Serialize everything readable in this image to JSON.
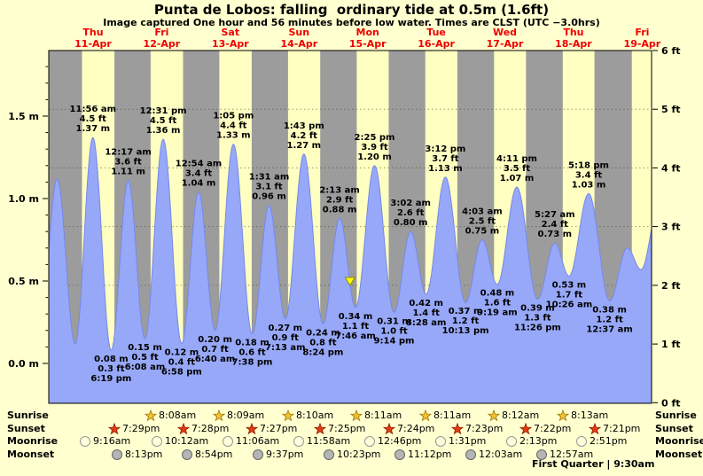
{
  "chart_data": {
    "type": "area",
    "title": "Punta de Lobos: falling  ordinary tide at 0.5m (1.6ft)",
    "subtitle": "Image captured One hour and 56 minutes before low water. Times are CLST (UTC −3.0hrs)",
    "series": "tide height",
    "x_unit": "hours from 00:00 Thu 11-Apr",
    "y_range_m": [
      -0.24,
      1.9
    ],
    "x_axis_days": [
      {
        "name": "Thu",
        "date": "11-Apr",
        "noon_t": 12
      },
      {
        "name": "Fri",
        "date": "12-Apr",
        "noon_t": 36
      },
      {
        "name": "Sat",
        "date": "13-Apr",
        "noon_t": 60
      },
      {
        "name": "Sun",
        "date": "14-Apr",
        "noon_t": 84
      },
      {
        "name": "Mon",
        "date": "15-Apr",
        "noon_t": 108
      },
      {
        "name": "Tue",
        "date": "16-Apr",
        "noon_t": 132
      },
      {
        "name": "Wed",
        "date": "17-Apr",
        "noon_t": 156
      },
      {
        "name": "Thu",
        "date": "18-Apr",
        "noon_t": 180
      },
      {
        "name": "Fri",
        "date": "19-Apr",
        "noon_t": 204
      }
    ],
    "y_axis_m": {
      "unit": "m",
      "ticks": [
        {
          "label": "0.0 m",
          "value": 0.0
        },
        {
          "label": "0.5 m",
          "value": 0.5
        },
        {
          "label": "1.0 m",
          "value": 1.0
        },
        {
          "label": "1.5 m",
          "value": 1.5
        }
      ]
    },
    "y_axis_ft": {
      "unit": "ft",
      "ticks": [
        {
          "label": "0 ft",
          "value": 0
        },
        {
          "label": "1 ft",
          "value": 1
        },
        {
          "label": "2 ft",
          "value": 2
        },
        {
          "label": "3 ft",
          "value": 3
        },
        {
          "label": "4 ft",
          "value": 4
        },
        {
          "label": "5 ft",
          "value": 5
        },
        {
          "label": "6 ft",
          "value": 6
        }
      ]
    },
    "extremes": [
      {
        "kind": "high",
        "t": 11.93,
        "h": 1.37,
        "time": "11:56 am",
        "ft": "4.5 ft",
        "m": "1.37 m"
      },
      {
        "kind": "low",
        "t": 18.32,
        "h": 0.08,
        "time": "6:19 pm",
        "ft": "0.3 ft",
        "m": "0.08 m"
      },
      {
        "kind": "high",
        "t": 24.28,
        "h": 1.11,
        "time": "12:17 am",
        "ft": "3.6 ft",
        "m": "1.11 m"
      },
      {
        "kind": "low",
        "t": 30.13,
        "h": 0.15,
        "time": "6:08 am",
        "ft": "0.5 ft",
        "m": "0.15 m"
      },
      {
        "kind": "high",
        "t": 36.52,
        "h": 1.36,
        "time": "12:31 pm",
        "ft": "4.5 ft",
        "m": "1.36 m"
      },
      {
        "kind": "low",
        "t": 42.97,
        "h": 0.12,
        "time": "6:58 pm",
        "ft": "0.4 ft",
        "m": "0.12 m"
      },
      {
        "kind": "high",
        "t": 48.9,
        "h": 1.04,
        "time": "12:54 am",
        "ft": "3.4 ft",
        "m": "1.04 m"
      },
      {
        "kind": "low",
        "t": 54.67,
        "h": 0.2,
        "time": "6:40 am",
        "ft": "0.7 ft",
        "m": "0.20 m"
      },
      {
        "kind": "high",
        "t": 61.08,
        "h": 1.33,
        "time": "1:05 pm",
        "ft": "4.4 ft",
        "m": "1.33 m"
      },
      {
        "kind": "low",
        "t": 67.63,
        "h": 0.18,
        "time": "7:38 pm",
        "ft": "0.6 ft",
        "m": "0.18 m"
      },
      {
        "kind": "high",
        "t": 73.52,
        "h": 0.96,
        "time": "1:31 am",
        "ft": "3.1 ft",
        "m": "0.96 m"
      },
      {
        "kind": "low",
        "t": 79.22,
        "h": 0.27,
        "time": "7:13 am",
        "ft": "0.9 ft",
        "m": "0.27 m"
      },
      {
        "kind": "high",
        "t": 85.72,
        "h": 1.27,
        "time": "1:43 pm",
        "ft": "4.2 ft",
        "m": "1.27 m"
      },
      {
        "kind": "low",
        "t": 92.4,
        "h": 0.24,
        "time": "8:24 pm",
        "ft": "0.8 ft",
        "m": "0.24 m"
      },
      {
        "kind": "high",
        "t": 98.22,
        "h": 0.88,
        "time": "2:13 am",
        "ft": "2.9 ft",
        "m": "0.88 m"
      },
      {
        "kind": "low",
        "t": 103.77,
        "h": 0.34,
        "time": "7:46 am",
        "ft": "1.1 ft",
        "m": "0.34 m"
      },
      {
        "kind": "high",
        "t": 110.42,
        "h": 1.2,
        "time": "2:25 pm",
        "ft": "3.9 ft",
        "m": "1.20 m"
      },
      {
        "kind": "low",
        "t": 117.23,
        "h": 0.31,
        "time": "9:14 pm",
        "ft": "1.0 ft",
        "m": "0.31 m"
      },
      {
        "kind": "high",
        "t": 123.03,
        "h": 0.8,
        "time": "3:02 am",
        "ft": "2.6 ft",
        "m": "0.80 m"
      },
      {
        "kind": "low",
        "t": 128.47,
        "h": 0.42,
        "time": "8:28 am",
        "ft": "1.4 ft",
        "m": "0.42 m"
      },
      {
        "kind": "high",
        "t": 135.2,
        "h": 1.13,
        "time": "3:12 pm",
        "ft": "3.7 ft",
        "m": "1.13 m"
      },
      {
        "kind": "low",
        "t": 142.22,
        "h": 0.37,
        "time": "10:13 pm",
        "ft": "1.2 ft",
        "m": "0.37 m"
      },
      {
        "kind": "high",
        "t": 148.05,
        "h": 0.75,
        "time": "4:03 am",
        "ft": "2.5 ft",
        "m": "0.75 m"
      },
      {
        "kind": "low",
        "t": 153.32,
        "h": 0.48,
        "time": "9:19 am",
        "ft": "1.6 ft",
        "m": "0.48 m"
      },
      {
        "kind": "high",
        "t": 160.18,
        "h": 1.07,
        "time": "4:11 pm",
        "ft": "3.5 ft",
        "m": "1.07 m"
      },
      {
        "kind": "low",
        "t": 167.43,
        "h": 0.39,
        "time": "11:26 pm",
        "ft": "1.3 ft",
        "m": "0.39 m"
      },
      {
        "kind": "high",
        "t": 173.45,
        "h": 0.73,
        "time": "5:27 am",
        "ft": "2.4 ft",
        "m": "0.73 m"
      },
      {
        "kind": "low",
        "t": 178.43,
        "h": 0.53,
        "time": "10:26 am",
        "ft": "1.7 ft",
        "m": "0.53 m"
      },
      {
        "kind": "high",
        "t": 185.3,
        "h": 1.03,
        "time": "5:18 pm",
        "ft": "3.4 ft",
        "m": "1.03 m"
      },
      {
        "kind": "low",
        "t": 192.62,
        "h": 0.38,
        "time": "12:37 am",
        "ft": "1.2 ft",
        "m": "0.38 m"
      }
    ],
    "curve_edge_anchors": [
      {
        "t": -6.8,
        "h": 0.1
      },
      {
        "t": -0.6,
        "h": 1.12
      },
      {
        "t": 5.75,
        "h": 0.12
      },
      {
        "t": 198.8,
        "h": 0.7
      },
      {
        "t": 203.6,
        "h": 0.57
      },
      {
        "t": 210.5,
        "h": 1.02
      }
    ],
    "night_bands_t": [
      [
        -3.5,
        8.13
      ],
      [
        19.48,
        32.13
      ],
      [
        43.47,
        56.15
      ],
      [
        67.45,
        80.17
      ],
      [
        91.42,
        104.18
      ],
      [
        115.4,
        128.18
      ],
      [
        139.38,
        152.2
      ],
      [
        163.37,
        176.22
      ],
      [
        187.35,
        200.4
      ]
    ],
    "current_marker": {
      "t": 101.83,
      "h": 0.5
    },
    "colors": {
      "day": "#ffffc2",
      "night": "#9c9c9c",
      "tide_fill": "#97a8f8",
      "tide_edge": "#7688e8",
      "day_label_red": "#ee0000",
      "marker_fill": "#ffff00",
      "marker_edge": "#8b8b00"
    },
    "legend": "none",
    "grid": "dotted horizontal lines at foot intervals"
  },
  "footer": {
    "rows": [
      {
        "key": "sunrise",
        "label": "Sunrise",
        "icon": "sunrise-star",
        "entries": [
          {
            "time": "8:08am",
            "t": 32.13
          },
          {
            "time": "8:09am",
            "t": 56.15
          },
          {
            "time": "8:10am",
            "t": 80.17
          },
          {
            "time": "8:11am",
            "t": 104.18
          },
          {
            "time": "8:11am",
            "t": 128.18
          },
          {
            "time": "8:12am",
            "t": 152.2
          },
          {
            "time": "8:13am",
            "t": 176.22
          }
        ]
      },
      {
        "key": "sunset",
        "label": "Sunset",
        "icon": "sunset-star",
        "entries": [
          {
            "time": "7:29pm",
            "t": 19.48
          },
          {
            "time": "7:28pm",
            "t": 43.47
          },
          {
            "time": "7:27pm",
            "t": 67.45
          },
          {
            "time": "7:25pm",
            "t": 91.42
          },
          {
            "time": "7:24pm",
            "t": 115.4
          },
          {
            "time": "7:23pm",
            "t": 139.38
          },
          {
            "time": "7:22pm",
            "t": 163.37
          },
          {
            "time": "7:21pm",
            "t": 187.35
          }
        ]
      },
      {
        "key": "moonrise",
        "label": "Moonrise",
        "icon": "moonrise-circle",
        "entries": [
          {
            "time": "9:16am",
            "t": 9.27
          },
          {
            "time": "10:12am",
            "t": 34.2
          },
          {
            "time": "11:06am",
            "t": 59.1
          },
          {
            "time": "11:58am",
            "t": 83.97
          },
          {
            "time": "12:46pm",
            "t": 108.77
          },
          {
            "time": "1:31pm",
            "t": 133.52
          },
          {
            "time": "2:13pm",
            "t": 158.22
          },
          {
            "time": "2:51pm",
            "t": 182.85
          }
        ]
      },
      {
        "key": "moonset",
        "label": "Moonset",
        "icon": "moonset-circle",
        "entries": [
          {
            "time": "8:13pm",
            "t": 20.22
          },
          {
            "time": "8:54pm",
            "t": 44.9
          },
          {
            "time": "9:37pm",
            "t": 69.62
          },
          {
            "time": "10:23pm",
            "t": 94.38
          },
          {
            "time": "11:12pm",
            "t": 119.2
          },
          {
            "time": "12:03am",
            "t": 144.05
          },
          {
            "time": "12:57am",
            "t": 168.95
          }
        ]
      }
    ],
    "icon_colors": {
      "sunrise-star": {
        "fill": "#f2c12e",
        "stroke": "#9a7a10"
      },
      "sunset-star": {
        "fill": "#e23b10",
        "stroke": "#8f1d06"
      },
      "moonrise-circle": {
        "fill": "#ffffdd",
        "stroke": "#999999"
      },
      "moonset-circle": {
        "fill": "#b5b5b5",
        "stroke": "#666666"
      }
    },
    "moon_phase": "First Quarter | 9:30am"
  }
}
